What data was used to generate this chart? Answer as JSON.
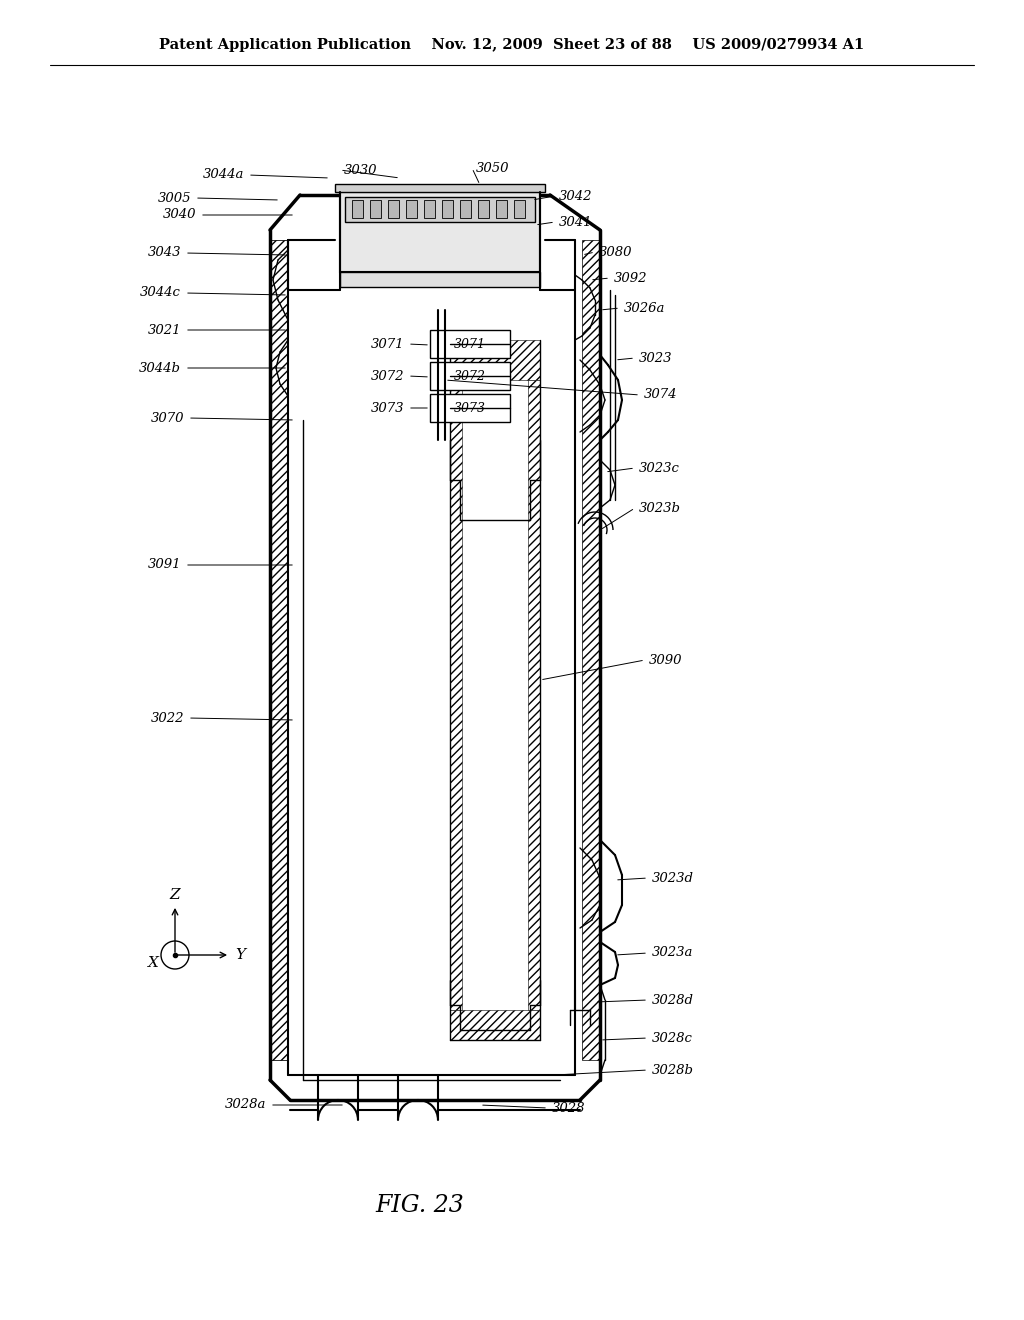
{
  "title_left": "Patent Application Publication",
  "title_mid": "Nov. 12, 2009  Sheet 23 of 88",
  "title_right": "US 2009/0279934 A1",
  "fig_label": "FIG. 23",
  "bg_color": "#ffffff",
  "line_color": "#000000",
  "header_fontsize": 10.5,
  "label_fontsize": 9.5,
  "fig_label_fontsize": 17
}
